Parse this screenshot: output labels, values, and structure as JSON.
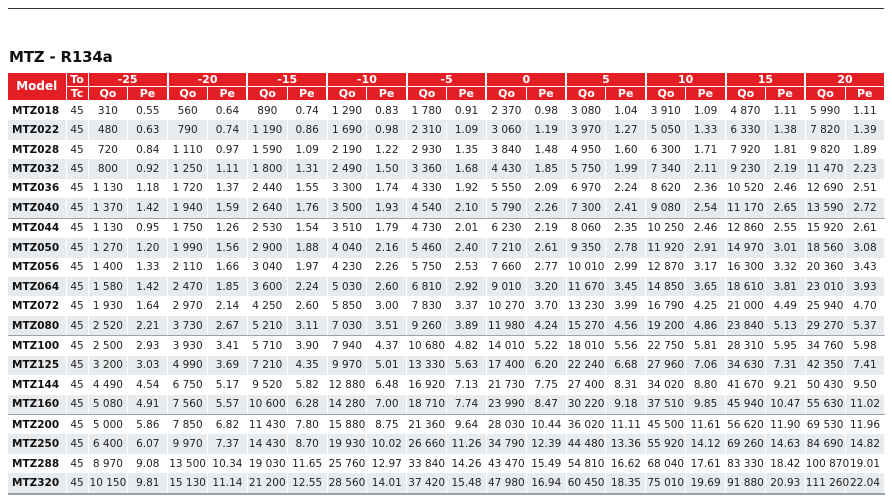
{
  "title": "MTZ -  R134a",
  "table": {
    "model_header": "Model",
    "to_header": "To",
    "tc_header": "Tc",
    "qo_label": "Qo",
    "pe_label": "Pe",
    "to_values": [
      "-25",
      "-20",
      "-15",
      "-10",
      "-5",
      "0",
      "5",
      "10",
      "15",
      "20"
    ],
    "rows": [
      [
        "MTZ018",
        "45",
        "310",
        "0.55",
        "560",
        "0.64",
        "890",
        "0.74",
        "1 290",
        "0.83",
        "1 780",
        "0.91",
        "2 370",
        "0.98",
        "3 080",
        "1.04",
        "3 910",
        "1.09",
        "4 870",
        "1.11",
        "5 990",
        "1.11"
      ],
      [
        "MTZ022",
        "45",
        "480",
        "0.63",
        "790",
        "0.74",
        "1 190",
        "0.86",
        "1 690",
        "0.98",
        "2 310",
        "1.09",
        "3 060",
        "1.19",
        "3 970",
        "1.27",
        "5 050",
        "1.33",
        "6 330",
        "1.38",
        "7 820",
        "1.39"
      ],
      [
        "MTZ028",
        "45",
        "720",
        "0.84",
        "1 110",
        "0.97",
        "1 590",
        "1.09",
        "2 190",
        "1.22",
        "2 930",
        "1.35",
        "3 840",
        "1.48",
        "4 950",
        "1.60",
        "6 300",
        "1.71",
        "7 920",
        "1.81",
        "9 820",
        "1.89"
      ],
      [
        "MTZ032",
        "45",
        "800",
        "0.92",
        "1 250",
        "1.11",
        "1 800",
        "1.31",
        "2 490",
        "1.50",
        "3 360",
        "1.68",
        "4 430",
        "1.85",
        "5 750",
        "1.99",
        "7 340",
        "2.11",
        "9 230",
        "2.19",
        "11 470",
        "2.23"
      ],
      [
        "MTZ036",
        "45",
        "1 130",
        "1.18",
        "1 720",
        "1.37",
        "2 440",
        "1.55",
        "3 300",
        "1.74",
        "4 330",
        "1.92",
        "5 550",
        "2.09",
        "6 970",
        "2.24",
        "8 620",
        "2.36",
        "10 520",
        "2.46",
        "12 690",
        "2.51"
      ],
      [
        "MTZ040",
        "45",
        "1 370",
        "1.42",
        "1 940",
        "1.59",
        "2 640",
        "1.76",
        "3 500",
        "1.93",
        "4 540",
        "2.10",
        "5 790",
        "2.26",
        "7 300",
        "2.41",
        "9 080",
        "2.54",
        "11 170",
        "2.65",
        "13 590",
        "2.72"
      ],
      [
        "MTZ044",
        "45",
        "1 130",
        "0.95",
        "1 750",
        "1.26",
        "2 530",
        "1.54",
        "3 510",
        "1.79",
        "4 730",
        "2.01",
        "6 230",
        "2.19",
        "8 060",
        "2.35",
        "10 250",
        "2.46",
        "12 860",
        "2.55",
        "15 920",
        "2.61"
      ],
      [
        "MTZ050",
        "45",
        "1 270",
        "1.20",
        "1 990",
        "1.56",
        "2 900",
        "1.88",
        "4 040",
        "2.16",
        "5 460",
        "2.40",
        "7 210",
        "2.61",
        "9 350",
        "2.78",
        "11 920",
        "2.91",
        "14 970",
        "3.01",
        "18 560",
        "3.08"
      ],
      [
        "MTZ056",
        "45",
        "1 400",
        "1.33",
        "2 110",
        "1.66",
        "3 040",
        "1.97",
        "4 230",
        "2.26",
        "5 750",
        "2.53",
        "7 660",
        "2.77",
        "10 010",
        "2.99",
        "12 870",
        "3.17",
        "16 300",
        "3.32",
        "20 360",
        "3.43"
      ],
      [
        "MTZ064",
        "45",
        "1 580",
        "1.42",
        "2 470",
        "1.85",
        "3 600",
        "2.24",
        "5 030",
        "2.60",
        "6 810",
        "2.92",
        "9 010",
        "3.20",
        "11 670",
        "3.45",
        "14 850",
        "3.65",
        "18 610",
        "3.81",
        "23 010",
        "3.93"
      ],
      [
        "MTZ072",
        "45",
        "1 930",
        "1.64",
        "2 970",
        "2.14",
        "4 250",
        "2.60",
        "5 850",
        "3.00",
        "7 830",
        "3.37",
        "10 270",
        "3.70",
        "13 230",
        "3.99",
        "16 790",
        "4.25",
        "21 000",
        "4.49",
        "25 940",
        "4.70"
      ],
      [
        "MTZ080",
        "45",
        "2 520",
        "2.21",
        "3 730",
        "2.67",
        "5 210",
        "3.11",
        "7 030",
        "3.51",
        "9 260",
        "3.89",
        "11 980",
        "4.24",
        "15 270",
        "4.56",
        "19 200",
        "4.86",
        "23 840",
        "5.13",
        "29 270",
        "5.37"
      ],
      [
        "MTZ100",
        "45",
        "2 500",
        "2.93",
        "3 930",
        "3.41",
        "5 710",
        "3.90",
        "7 940",
        "4.37",
        "10 680",
        "4.82",
        "14 010",
        "5.22",
        "18 010",
        "5.56",
        "22 750",
        "5.81",
        "28 310",
        "5.95",
        "34 760",
        "5.98"
      ],
      [
        "MTZ125",
        "45",
        "3 200",
        "3.03",
        "4 990",
        "3.69",
        "7 210",
        "4.35",
        "9 970",
        "5.01",
        "13 330",
        "5.63",
        "17 400",
        "6.20",
        "22 240",
        "6.68",
        "27 960",
        "7.06",
        "34 630",
        "7.31",
        "42 350",
        "7.41"
      ],
      [
        "MTZ144",
        "45",
        "4 490",
        "4.54",
        "6 750",
        "5.17",
        "9 520",
        "5.82",
        "12 880",
        "6.48",
        "16 920",
        "7.13",
        "21 730",
        "7.75",
        "27 400",
        "8.31",
        "34 020",
        "8.80",
        "41 670",
        "9.21",
        "50 430",
        "9.50"
      ],
      [
        "MTZ160",
        "45",
        "5 080",
        "4.91",
        "7 560",
        "5.57",
        "10 600",
        "6.28",
        "14 280",
        "7.00",
        "18 710",
        "7.74",
        "23 990",
        "8.47",
        "30 220",
        "9.18",
        "37 510",
        "9.85",
        "45 940",
        "10.47",
        "55 630",
        "11.02"
      ],
      [
        "MTZ200",
        "45",
        "5 000",
        "5.86",
        "7 850",
        "6.82",
        "11 430",
        "7.80",
        "15 880",
        "8.75",
        "21 360",
        "9.64",
        "28 030",
        "10.44",
        "36 020",
        "11.11",
        "45 500",
        "11.61",
        "56 620",
        "11.90",
        "69 530",
        "11.96"
      ],
      [
        "MTZ250",
        "45",
        "6 400",
        "6.07",
        "9 970",
        "7.37",
        "14 430",
        "8.70",
        "19 930",
        "10.02",
        "26 660",
        "11.26",
        "34 790",
        "12.39",
        "44 480",
        "13.36",
        "55 920",
        "14.12",
        "69 260",
        "14.63",
        "84 690",
        "14.82"
      ],
      [
        "MTZ288",
        "45",
        "8 970",
        "9.08",
        "13 500",
        "10.34",
        "19 030",
        "11.65",
        "25 760",
        "12.97",
        "33 840",
        "14.26",
        "43 470",
        "15.49",
        "54 810",
        "16.62",
        "68 040",
        "17.61",
        "83 330",
        "18.42",
        "100 870",
        "19.01"
      ],
      [
        "MTZ320",
        "45",
        "10 150",
        "9.81",
        "15 130",
        "11.14",
        "21 200",
        "12.55",
        "28 560",
        "14.01",
        "37 420",
        "15.48",
        "47 980",
        "16.94",
        "60 450",
        "18.35",
        "75 010",
        "19.69",
        "91 880",
        "20.93",
        "111 260",
        "22.04"
      ]
    ]
  },
  "colors": {
    "header_bg": "#e31e24",
    "alt_row_bg": "#e8ebee"
  }
}
